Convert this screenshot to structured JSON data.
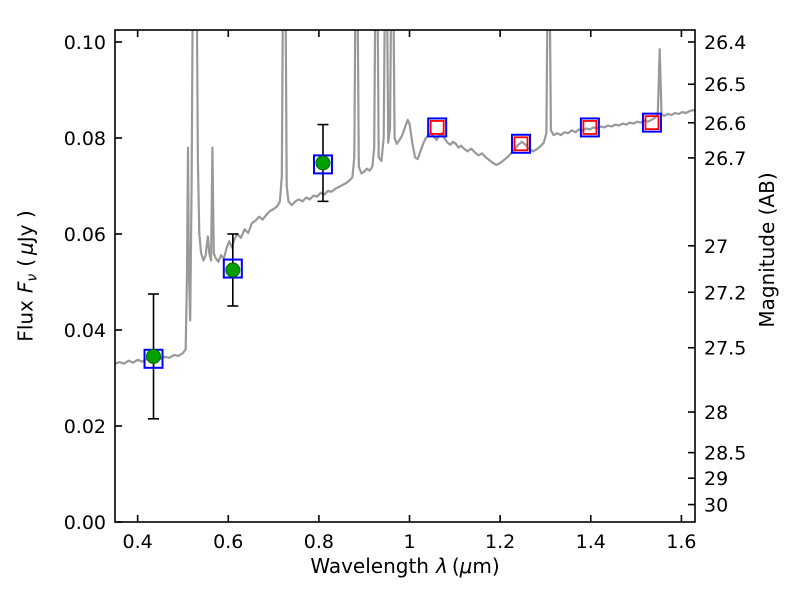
{
  "chart_data": {
    "type": "line",
    "title": "",
    "labels": {
      "xlabel_word": "Wavelength",
      "xlabel_lambda": "λ",
      "xlabel_open": "(",
      "xlabel_mu": "μ",
      "xlabel_close": "m)",
      "ylabel_word": "Flux",
      "ylabel_F": "F",
      "ylabel_nu": "ν",
      "ylabel_open": "(",
      "ylabel_mu": "μ",
      "ylabel_close": "Jy )",
      "ylabel_right": "Magnitude (AB)"
    },
    "xlim": [
      0.35,
      1.63
    ],
    "ylim": [
      0.0,
      0.1025
    ],
    "grid": false,
    "legend": "none",
    "x_ticks": {
      "values": [
        0.4,
        0.6,
        0.8,
        1.0,
        1.2,
        1.4,
        1.6
      ],
      "labels": [
        "0.4",
        "0.6",
        "0.8",
        "1",
        "1.2",
        "1.4",
        "1.6"
      ]
    },
    "y_ticks_left": {
      "values": [
        0.0,
        0.02,
        0.04,
        0.06,
        0.08,
        0.1
      ],
      "labels": [
        "0.00",
        "0.02",
        "0.04",
        "0.06",
        "0.08",
        "0.10"
      ]
    },
    "y_ticks_right": {
      "magnitudes": [
        26.4,
        26.5,
        26.6,
        26.7,
        27,
        27.2,
        27.5,
        28,
        28.5,
        29,
        30
      ],
      "labels": [
        "26.4",
        "26.5",
        "26.6",
        "26.7",
        "27",
        "27.2",
        "27.5",
        "28",
        "28.5",
        "29",
        "30"
      ],
      "ab_zeropoint_ujy": 23.9
    },
    "colors": {
      "spectrum": "#999999",
      "observed_circle": "#00a000",
      "observed_circle_edge": "#006400",
      "blue_square": "#0000ff",
      "red_square": "#ff0000",
      "error_bar": "#000000"
    },
    "series": {
      "spectrum": {
        "name": "model-spectrum",
        "points": [
          [
            0.35,
            0.033
          ],
          [
            0.36,
            0.0333
          ],
          [
            0.37,
            0.033
          ],
          [
            0.38,
            0.0336
          ],
          [
            0.39,
            0.0332
          ],
          [
            0.4,
            0.0338
          ],
          [
            0.41,
            0.0334
          ],
          [
            0.42,
            0.034
          ],
          [
            0.43,
            0.0336
          ],
          [
            0.44,
            0.0342
          ],
          [
            0.45,
            0.034
          ],
          [
            0.46,
            0.0344
          ],
          [
            0.47,
            0.0342
          ],
          [
            0.48,
            0.0348
          ],
          [
            0.49,
            0.0346
          ],
          [
            0.5,
            0.0352
          ],
          [
            0.506,
            0.036
          ],
          [
            0.509,
            0.052
          ],
          [
            0.511,
            0.078
          ],
          [
            0.513,
            0.052
          ],
          [
            0.516,
            0.042
          ],
          [
            0.519,
            0.07
          ],
          [
            0.522,
            0.115
          ],
          [
            0.53,
            0.115
          ],
          [
            0.533,
            0.075
          ],
          [
            0.536,
            0.06
          ],
          [
            0.54,
            0.056
          ],
          [
            0.545,
            0.0545
          ],
          [
            0.55,
            0.0555
          ],
          [
            0.555,
            0.0595
          ],
          [
            0.558,
            0.056
          ],
          [
            0.562,
            0.0545
          ],
          [
            0.565,
            0.078
          ],
          [
            0.568,
            0.056
          ],
          [
            0.572,
            0.055
          ],
          [
            0.578,
            0.0542
          ],
          [
            0.584,
            0.0556
          ],
          [
            0.59,
            0.0548
          ],
          [
            0.596,
            0.057
          ],
          [
            0.602,
            0.0585
          ],
          [
            0.608,
            0.0572
          ],
          [
            0.614,
            0.059
          ],
          [
            0.62,
            0.06
          ],
          [
            0.628,
            0.0592
          ],
          [
            0.636,
            0.061
          ],
          [
            0.644,
            0.0602
          ],
          [
            0.652,
            0.0622
          ],
          [
            0.66,
            0.0628
          ],
          [
            0.668,
            0.0636
          ],
          [
            0.676,
            0.063
          ],
          [
            0.684,
            0.064
          ],
          [
            0.692,
            0.0648
          ],
          [
            0.7,
            0.0652
          ],
          [
            0.708,
            0.0658
          ],
          [
            0.714,
            0.0668
          ],
          [
            0.718,
            0.072
          ],
          [
            0.721,
            0.115
          ],
          [
            0.726,
            0.115
          ],
          [
            0.729,
            0.07
          ],
          [
            0.733,
            0.0668
          ],
          [
            0.74,
            0.066
          ],
          [
            0.748,
            0.0668
          ],
          [
            0.756,
            0.0672
          ],
          [
            0.764,
            0.0668
          ],
          [
            0.772,
            0.0676
          ],
          [
            0.78,
            0.0672
          ],
          [
            0.788,
            0.068
          ],
          [
            0.796,
            0.0678
          ],
          [
            0.804,
            0.0686
          ],
          [
            0.812,
            0.0682
          ],
          [
            0.82,
            0.069
          ],
          [
            0.828,
            0.0688
          ],
          [
            0.836,
            0.0694
          ],
          [
            0.844,
            0.0698
          ],
          [
            0.852,
            0.0702
          ],
          [
            0.86,
            0.0706
          ],
          [
            0.868,
            0.0712
          ],
          [
            0.874,
            0.0718
          ],
          [
            0.878,
            0.076
          ],
          [
            0.881,
            0.115
          ],
          [
            0.885,
            0.115
          ],
          [
            0.888,
            0.074
          ],
          [
            0.894,
            0.0726
          ],
          [
            0.9,
            0.073
          ],
          [
            0.906,
            0.0736
          ],
          [
            0.912,
            0.0732
          ],
          [
            0.918,
            0.074
          ],
          [
            0.922,
            0.078
          ],
          [
            0.925,
            0.115
          ],
          [
            0.929,
            0.115
          ],
          [
            0.932,
            0.076
          ],
          [
            0.938,
            0.0752
          ],
          [
            0.943,
            0.08
          ],
          [
            0.946,
            0.115
          ],
          [
            0.95,
            0.115
          ],
          [
            0.953,
            0.079
          ],
          [
            0.957,
            0.082
          ],
          [
            0.96,
            0.115
          ],
          [
            0.964,
            0.115
          ],
          [
            0.967,
            0.08
          ],
          [
            0.972,
            0.0788
          ],
          [
            0.978,
            0.0796
          ],
          [
            0.984,
            0.0806
          ],
          [
            0.99,
            0.0822
          ],
          [
            0.996,
            0.0838
          ],
          [
            1.0,
            0.083
          ],
          [
            1.006,
            0.079
          ],
          [
            1.012,
            0.076
          ],
          [
            1.018,
            0.0756
          ],
          [
            1.024,
            0.0772
          ],
          [
            1.03,
            0.0788
          ],
          [
            1.036,
            0.08
          ],
          [
            1.042,
            0.0806
          ],
          [
            1.048,
            0.081
          ],
          [
            1.054,
            0.0802
          ],
          [
            1.06,
            0.0796
          ],
          [
            1.066,
            0.0806
          ],
          [
            1.072,
            0.081
          ],
          [
            1.078,
            0.0798
          ],
          [
            1.084,
            0.079
          ],
          [
            1.09,
            0.0786
          ],
          [
            1.096,
            0.0792
          ],
          [
            1.102,
            0.0788
          ],
          [
            1.108,
            0.078
          ],
          [
            1.114,
            0.0784
          ],
          [
            1.12,
            0.0778
          ],
          [
            1.128,
            0.0772
          ],
          [
            1.136,
            0.0778
          ],
          [
            1.144,
            0.077
          ],
          [
            1.152,
            0.0764
          ],
          [
            1.16,
            0.0768
          ],
          [
            1.168,
            0.076
          ],
          [
            1.176,
            0.0754
          ],
          [
            1.184,
            0.0748
          ],
          [
            1.192,
            0.0744
          ],
          [
            1.2,
            0.0748
          ],
          [
            1.208,
            0.0754
          ],
          [
            1.216,
            0.076
          ],
          [
            1.224,
            0.0768
          ],
          [
            1.232,
            0.0776
          ],
          [
            1.24,
            0.0786
          ],
          [
            1.248,
            0.0792
          ],
          [
            1.256,
            0.0786
          ],
          [
            1.264,
            0.0778
          ],
          [
            1.272,
            0.0772
          ],
          [
            1.28,
            0.0776
          ],
          [
            1.288,
            0.0782
          ],
          [
            1.296,
            0.079
          ],
          [
            1.302,
            0.081
          ],
          [
            1.305,
            0.115
          ],
          [
            1.309,
            0.115
          ],
          [
            1.312,
            0.0816
          ],
          [
            1.318,
            0.0806
          ],
          [
            1.326,
            0.081
          ],
          [
            1.334,
            0.0806
          ],
          [
            1.342,
            0.0812
          ],
          [
            1.35,
            0.081
          ],
          [
            1.358,
            0.0816
          ],
          [
            1.366,
            0.0812
          ],
          [
            1.374,
            0.0818
          ],
          [
            1.382,
            0.0816
          ],
          [
            1.39,
            0.082
          ],
          [
            1.398,
            0.0818
          ],
          [
            1.406,
            0.0822
          ],
          [
            1.414,
            0.082
          ],
          [
            1.422,
            0.0824
          ],
          [
            1.43,
            0.0822
          ],
          [
            1.438,
            0.0826
          ],
          [
            1.446,
            0.0824
          ],
          [
            1.454,
            0.0828
          ],
          [
            1.462,
            0.0826
          ],
          [
            1.47,
            0.083
          ],
          [
            1.478,
            0.0828
          ],
          [
            1.486,
            0.0832
          ],
          [
            1.494,
            0.083
          ],
          [
            1.502,
            0.0834
          ],
          [
            1.51,
            0.0832
          ],
          [
            1.518,
            0.0836
          ],
          [
            1.526,
            0.0834
          ],
          [
            1.534,
            0.0838
          ],
          [
            1.542,
            0.0842
          ],
          [
            1.548,
            0.085
          ],
          [
            1.552,
            0.0985
          ],
          [
            1.556,
            0.085
          ],
          [
            1.562,
            0.0846
          ],
          [
            1.57,
            0.085
          ],
          [
            1.578,
            0.0848
          ],
          [
            1.586,
            0.0852
          ],
          [
            1.594,
            0.085
          ],
          [
            1.602,
            0.0854
          ],
          [
            1.61,
            0.0852
          ],
          [
            1.618,
            0.0856
          ],
          [
            1.626,
            0.0858
          ],
          [
            1.63,
            0.0858
          ]
        ]
      },
      "observed": {
        "name": "observed-photometry",
        "marker": "filled-circle",
        "points": [
          {
            "x": 0.435,
            "y": 0.0345,
            "yerr": 0.013
          },
          {
            "x": 0.61,
            "y": 0.0525,
            "yerr": 0.0075
          },
          {
            "x": 0.809,
            "y": 0.0748,
            "yerr": 0.008
          }
        ]
      },
      "blue_squares": {
        "name": "photometry-apertures",
        "marker": "open-square",
        "points": [
          [
            0.435,
            0.034
          ],
          [
            0.61,
            0.0528
          ],
          [
            0.809,
            0.0745
          ],
          [
            1.061,
            0.0822
          ],
          [
            1.246,
            0.0788
          ],
          [
            1.398,
            0.0822
          ],
          [
            1.535,
            0.0832
          ]
        ]
      },
      "red_squares": {
        "name": "model-photometry",
        "marker": "open-square",
        "points": [
          [
            1.061,
            0.0822
          ],
          [
            1.246,
            0.0788
          ],
          [
            1.398,
            0.0822
          ],
          [
            1.535,
            0.0832
          ]
        ]
      }
    }
  }
}
